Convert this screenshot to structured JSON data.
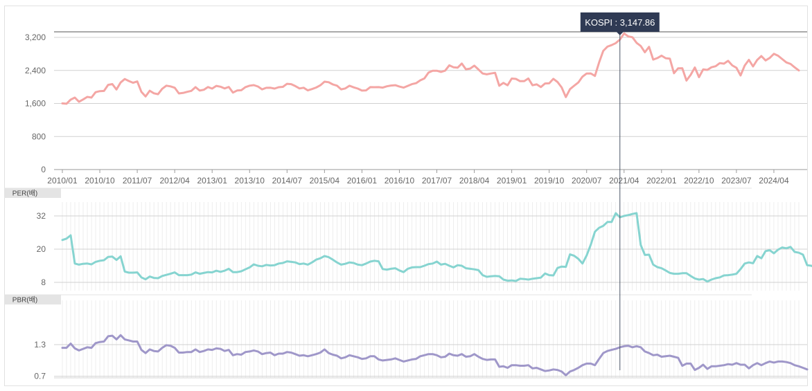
{
  "tooltip": {
    "label": "KOSPI : 3,147.86"
  },
  "colors": {
    "kospi": "#f4a6a4",
    "per": "#86d4d0",
    "pbr": "#9f97c9",
    "grid": "#d0d0d0",
    "axis": "#999999"
  },
  "chart_data": [
    {
      "type": "line",
      "panel": "kospi",
      "series": [
        {
          "name": "KOSPI",
          "values": [
            1602,
            1594,
            1692,
            1742,
            1641,
            1698,
            1759,
            1743,
            1873,
            1898,
            1904,
            2051,
            2069,
            1939,
            2107,
            2192,
            2142,
            2101,
            2133,
            1880,
            1770,
            1909,
            1847,
            1825,
            1955,
            2030,
            2014,
            1981,
            1843,
            1854,
            1881,
            1905,
            1996,
            1912,
            1932,
            1997,
            1961,
            2026,
            2005,
            1963,
            2001,
            1863,
            1914,
            1920,
            1996,
            2030,
            2044,
            2011,
            1941,
            1979,
            1981,
            1961,
            1994,
            2002,
            2076,
            2068,
            2020,
            1964,
            1981,
            1916,
            1949,
            1985,
            2041,
            2127,
            2114,
            2061,
            2030,
            1941,
            1963,
            2029,
            1991,
            1961,
            1912,
            1916,
            1995,
            1994,
            1995,
            1983,
            2016,
            2034,
            2043,
            2008,
            1983,
            2026,
            2068,
            2091,
            2160,
            2205,
            2347,
            2391,
            2392,
            2363,
            2394,
            2523,
            2476,
            2467,
            2566,
            2427,
            2445,
            2515,
            2423,
            2326,
            2306,
            2326,
            2343,
            2029,
            2097,
            2041,
            2203,
            2195,
            2140,
            2140,
            2204,
            2041,
            2063,
            1997,
            2084,
            2087,
            2197,
            2119,
            1987,
            1754,
            1947,
            2029,
            2108,
            2249,
            2326,
            2327,
            2267,
            2591,
            2873,
            2976,
            3013,
            3061,
            3148,
            3296,
            3224,
            3203,
            3068,
            2993,
            2839,
            2971,
            2663,
            2699,
            2757,
            2695,
            2685,
            2332,
            2451,
            2452,
            2155,
            2293,
            2472,
            2236,
            2425,
            2412,
            2476,
            2501,
            2577,
            2564,
            2632,
            2521,
            2465,
            2278,
            2519,
            2655,
            2497,
            2654,
            2747,
            2642,
            2702,
            2801,
            2756,
            2674,
            2593,
            2556,
            2475,
            2400
          ]
        }
      ],
      "x_tick_labels": [
        "2010/01",
        "2010/10",
        "2011/07",
        "2012/04",
        "2013/01",
        "2013/10",
        "2014/07",
        "2015/04",
        "2016/01",
        "2016/10",
        "2017/07",
        "2018/04",
        "2019/01",
        "2019/10",
        "2020/07",
        "2021/04",
        "2022/01",
        "2022/10",
        "2023/07",
        "2024/04"
      ],
      "y_ticks": [
        0,
        800,
        1600,
        2400,
        3200
      ],
      "y_tick_labels": [
        "0",
        "800",
        "1,600",
        "2,400",
        "3,200"
      ],
      "ylim": [
        0,
        3200
      ],
      "grid": true,
      "highlight_index": 134
    },
    {
      "type": "line",
      "panel": "per",
      "panel_label": "PER(배)",
      "series": [
        {
          "name": "PER",
          "values": [
            23.3,
            23.8,
            25.0,
            14.8,
            14.4,
            14.7,
            14.8,
            14.5,
            15.4,
            15.8,
            16.0,
            17.2,
            17.3,
            16.1,
            17.4,
            11.9,
            11.5,
            11.5,
            11.6,
            9.8,
            9.1,
            10.1,
            9.6,
            9.5,
            10.3,
            10.7,
            11.1,
            11.6,
            10.6,
            10.6,
            10.6,
            10.8,
            11.6,
            11.1,
            11.4,
            11.7,
            11.6,
            12.2,
            11.8,
            12.2,
            12.9,
            11.7,
            11.7,
            12.0,
            12.7,
            13.4,
            14.5,
            14.0,
            13.8,
            14.3,
            14.1,
            14.2,
            14.8,
            15.0,
            15.6,
            15.4,
            15.2,
            14.6,
            14.8,
            14.4,
            15.2,
            16.2,
            16.7,
            17.5,
            17.1,
            16.2,
            15.2,
            14.4,
            14.7,
            15.2,
            15.0,
            14.4,
            14.2,
            14.8,
            15.5,
            15.8,
            15.6,
            12.8,
            12.6,
            12.9,
            13.1,
            12.3,
            11.7,
            12.9,
            13.4,
            13.5,
            13.5,
            14.0,
            14.6,
            14.8,
            15.5,
            14.4,
            14.7,
            14.0,
            13.4,
            14.2,
            14.0,
            13.1,
            12.9,
            12.7,
            12.4,
            10.6,
            10.0,
            10.2,
            10.3,
            10.2,
            9.0,
            8.6,
            8.7,
            8.5,
            9.3,
            9.2,
            9.0,
            9.3,
            9.5,
            9.7,
            11.2,
            10.6,
            10.5,
            13.2,
            13.7,
            13.6,
            18.1,
            17.6,
            16.5,
            14.8,
            17.7,
            21.6,
            26.3,
            27.7,
            28.4,
            29.8,
            29.8,
            33.0,
            31.5,
            32.0,
            32.3,
            32.7,
            33.0,
            21.5,
            17.9,
            18.0,
            14.4,
            13.5,
            13.1,
            12.3,
            11.4,
            11.1,
            11.1,
            11.3,
            11.3,
            10.3,
            9.4,
            9.0,
            9.2,
            8.3,
            9.0,
            9.5,
            9.8,
            10.5,
            10.6,
            10.8,
            11.1,
            12.8,
            14.8,
            15.2,
            14.9,
            17.5,
            16.7,
            19.3,
            19.6,
            18.5,
            19.8,
            20.6,
            20.3,
            20.8,
            19.0,
            18.7,
            18.0,
            14.2,
            14.0,
            13.3,
            12.3
          ]
        }
      ],
      "y_ticks": [
        8,
        20,
        32
      ],
      "y_tick_labels": [
        "8",
        "20",
        "32"
      ],
      "ylim": [
        8,
        32
      ],
      "grid": true
    },
    {
      "type": "line",
      "panel": "pbr",
      "panel_label": "PBR(배)",
      "series": [
        {
          "name": "PBR",
          "values": [
            1.24,
            1.24,
            1.32,
            1.23,
            1.19,
            1.22,
            1.25,
            1.24,
            1.33,
            1.35,
            1.36,
            1.46,
            1.47,
            1.4,
            1.48,
            1.4,
            1.38,
            1.36,
            1.36,
            1.2,
            1.14,
            1.21,
            1.18,
            1.17,
            1.24,
            1.29,
            1.28,
            1.24,
            1.15,
            1.15,
            1.16,
            1.16,
            1.21,
            1.16,
            1.18,
            1.21,
            1.2,
            1.23,
            1.22,
            1.18,
            1.2,
            1.1,
            1.12,
            1.11,
            1.16,
            1.17,
            1.19,
            1.17,
            1.12,
            1.14,
            1.15,
            1.1,
            1.13,
            1.13,
            1.16,
            1.15,
            1.12,
            1.09,
            1.1,
            1.08,
            1.1,
            1.12,
            1.15,
            1.21,
            1.14,
            1.11,
            1.09,
            1.04,
            1.06,
            1.1,
            1.08,
            1.06,
            1.03,
            1.04,
            1.08,
            1.08,
            1.02,
            1.0,
            1.01,
            1.02,
            1.04,
            1.01,
            0.98,
            1.0,
            1.02,
            1.03,
            1.08,
            1.1,
            1.12,
            1.12,
            1.1,
            1.06,
            1.07,
            1.13,
            1.1,
            1.09,
            1.12,
            1.07,
            1.08,
            1.12,
            1.07,
            1.03,
            1.01,
            1.02,
            1.02,
            0.88,
            0.89,
            0.86,
            0.91,
            0.91,
            0.9,
            0.9,
            0.91,
            0.85,
            0.86,
            0.83,
            0.8,
            0.81,
            0.83,
            0.82,
            0.79,
            0.72,
            0.79,
            0.82,
            0.86,
            0.91,
            0.94,
            0.94,
            0.91,
            1.03,
            1.14,
            1.18,
            1.2,
            1.22,
            1.25,
            1.27,
            1.28,
            1.25,
            1.27,
            1.25,
            1.17,
            1.14,
            1.1,
            1.11,
            1.07,
            1.08,
            1.09,
            1.07,
            1.05,
            0.9,
            0.94,
            0.94,
            0.82,
            0.86,
            0.92,
            0.84,
            0.89,
            0.89,
            0.9,
            0.91,
            0.93,
            0.92,
            0.95,
            0.92,
            0.92,
            0.85,
            0.91,
            0.95,
            0.91,
            0.95,
            0.98,
            0.96,
            0.98,
            0.98,
            0.97,
            0.95,
            0.91,
            0.89,
            0.86,
            0.83
          ]
        }
      ],
      "y_ticks": [
        0.7,
        1.3
      ],
      "y_tick_labels": [
        "0.7",
        "1.3"
      ],
      "ylim": [
        0.67,
        1.55
      ],
      "grid": true
    }
  ]
}
